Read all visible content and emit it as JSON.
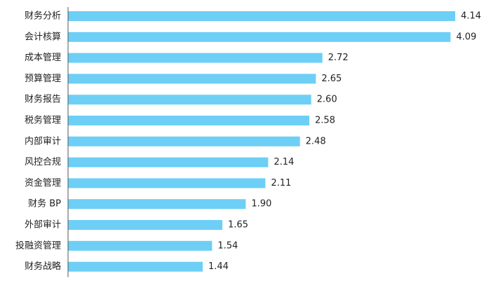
{
  "chart_data": {
    "type": "bar",
    "orientation": "horizontal",
    "categories": [
      "财务分析",
      "会计核算",
      "成本管理",
      "预算管理",
      "财务报告",
      "税务管理",
      "内部审计",
      "风控合规",
      "资金管理",
      "财务 BP",
      "外部审计",
      "投融资管理",
      "财务战略"
    ],
    "values": [
      4.14,
      4.09,
      2.72,
      2.65,
      2.6,
      2.58,
      2.48,
      2.14,
      2.11,
      1.9,
      1.65,
      1.54,
      1.44
    ],
    "value_labels": [
      "4.14",
      "4.09",
      "2.72",
      "2.65",
      "2.60",
      "2.58",
      "2.48",
      "2.14",
      "2.11",
      "1.90",
      "1.65",
      "1.54",
      "1.44"
    ],
    "xlim": [
      0,
      4.2
    ],
    "grid": false,
    "axis_line_color": "#555555",
    "bar_color": "#6dcff6"
  }
}
